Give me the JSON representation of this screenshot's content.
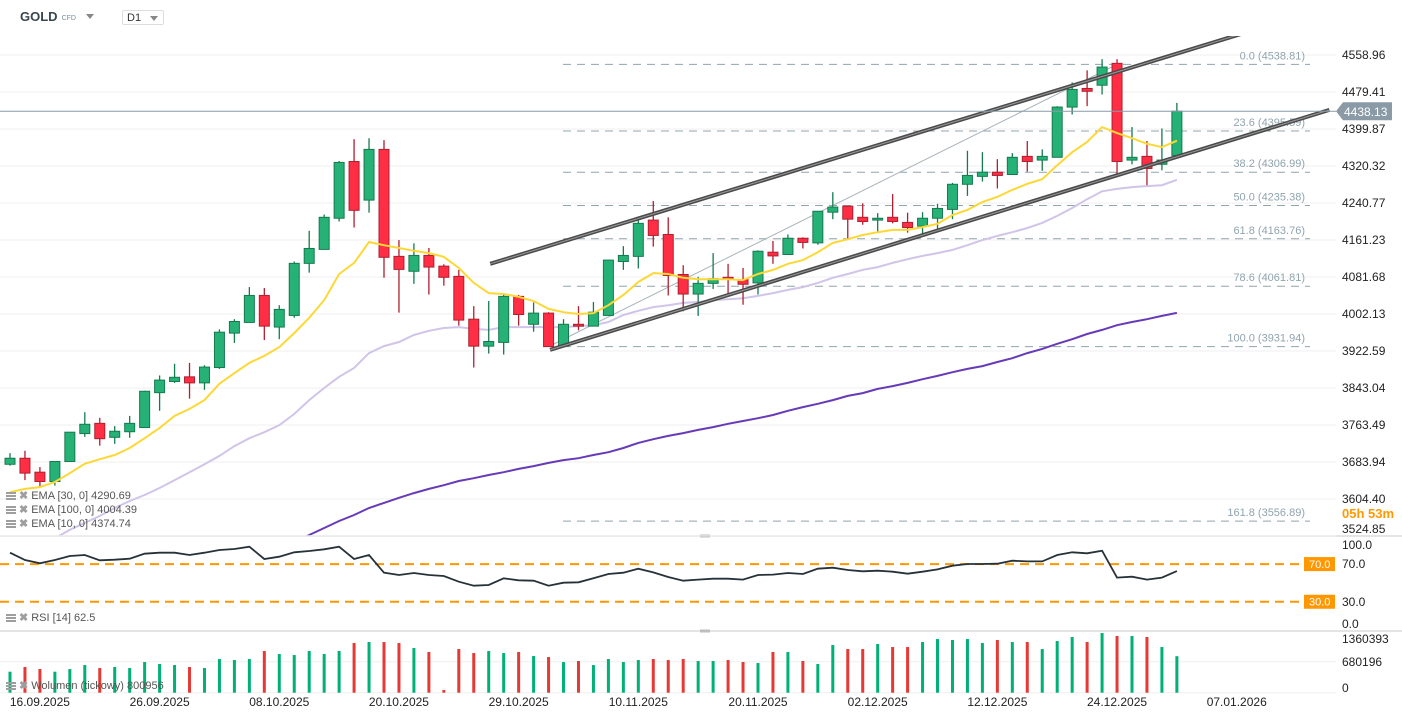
{
  "header": {
    "symbol": "GOLD",
    "instrument_type": "CFD",
    "timeframe": "D1"
  },
  "colors": {
    "up": "#26b276",
    "up_border": "#157a4e",
    "down": "#ff2e44",
    "down_border": "#b01f2f",
    "vol_up": "#00b074",
    "vol_down": "#e53935",
    "ema10": "#fdd835",
    "ema30": "#d1c4e9",
    "ema100": "#673ab7",
    "rsi": "#263238",
    "rsi_levels": "#ff9800",
    "fib": "#90a4ae",
    "channel": "#4a4a4a",
    "last_price": "#8a9aa6"
  },
  "legends": {
    "ema30": "EMA [30, 0] 4290.69",
    "ema100": "EMA [100, 0] 4004.39",
    "ema10": "EMA [10, 0] 4374.74",
    "rsi": "RSI [14] 62.5",
    "volume": "Wolumen (tickowy) 800956"
  },
  "countdown": "05h 53m",
  "last_price": {
    "value": 4438.13,
    "label": "4438.13"
  },
  "chart_data": [
    {
      "type": "candlestick",
      "price_axis": {
        "ticks": [
          "4558.96",
          "4479.41",
          "4399.87",
          "4320.32",
          "4240.77",
          "4161.23",
          "4081.68",
          "4002.13",
          "3922.59",
          "3843.04",
          "3763.49",
          "3683.94",
          "3604.40",
          "3524.85"
        ],
        "range": [
          3524.85,
          4580
        ]
      },
      "x_axis": {
        "ticks": [
          {
            "label": "16.09.2025",
            "index": 2
          },
          {
            "label": "26.09.2025",
            "index": 10
          },
          {
            "label": "08.10.2025",
            "index": 18
          },
          {
            "label": "20.10.2025",
            "index": 26
          },
          {
            "label": "29.10.2025",
            "index": 34
          },
          {
            "label": "10.11.2025",
            "index": 42
          },
          {
            "label": "20.11.2025",
            "index": 50
          },
          {
            "label": "02.12.2025",
            "index": 58
          },
          {
            "label": "12.12.2025",
            "index": 66
          },
          {
            "label": "24.12.2025",
            "index": 74
          },
          {
            "label": "07.01.2026",
            "index": 82
          }
        ]
      },
      "ohlc": [
        [
          3679,
          3703,
          3676,
          3692
        ],
        [
          3692,
          3708,
          3645,
          3660
        ],
        [
          3662,
          3673,
          3630,
          3642
        ],
        [
          3642,
          3686,
          3633,
          3685
        ],
        [
          3685,
          3748,
          3685,
          3748
        ],
        [
          3745,
          3791,
          3738,
          3765
        ],
        [
          3767,
          3779,
          3719,
          3734
        ],
        [
          3737,
          3761,
          3723,
          3750
        ],
        [
          3749,
          3783,
          3736,
          3767
        ],
        [
          3758,
          3837,
          3757,
          3836
        ],
        [
          3833,
          3870,
          3794,
          3860
        ],
        [
          3857,
          3895,
          3854,
          3866
        ],
        [
          3867,
          3897,
          3820,
          3854
        ],
        [
          3854,
          3892,
          3839,
          3888
        ],
        [
          3887,
          3969,
          3884,
          3963
        ],
        [
          3961,
          3991,
          3940,
          3986
        ],
        [
          3984,
          4060,
          3984,
          4042
        ],
        [
          4042,
          4058,
          3946,
          3976
        ],
        [
          3974,
          4021,
          3948,
          4012
        ],
        [
          3999,
          4115,
          3994,
          4111
        ],
        [
          4111,
          4181,
          4091,
          4143
        ],
        [
          4141,
          4216,
          4141,
          4210
        ],
        [
          4208,
          4331,
          4201,
          4328
        ],
        [
          4330,
          4378,
          4188,
          4225
        ],
        [
          4247,
          4380,
          4220,
          4356
        ],
        [
          4356,
          4376,
          4080,
          4124
        ],
        [
          4126,
          4161,
          4005,
          4098
        ],
        [
          4094,
          4154,
          4067,
          4128
        ],
        [
          4128,
          4144,
          4044,
          4103
        ],
        [
          4105,
          4109,
          4063,
          4081
        ],
        [
          4083,
          4097,
          3977,
          3989
        ],
        [
          3991,
          4019,
          3887,
          3933
        ],
        [
          3933,
          4030,
          3917,
          3943
        ],
        [
          3941,
          4044,
          3915,
          4040
        ],
        [
          4040,
          4043,
          3977,
          4001
        ],
        [
          3980,
          4027,
          3964,
          4004
        ],
        [
          4004,
          4006,
          3931.94,
          3932
        ],
        [
          3933,
          3991,
          3930,
          3980
        ],
        [
          3980,
          4019,
          3967,
          3976
        ],
        [
          3976,
          4028,
          3976,
          4006
        ],
        [
          3999,
          4118,
          3999,
          4118
        ],
        [
          4115,
          4148,
          4097,
          4128
        ],
        [
          4126,
          4210,
          4100,
          4197
        ],
        [
          4204,
          4245,
          4147,
          4171
        ],
        [
          4173,
          4210,
          4042,
          4085
        ],
        [
          4087,
          4107,
          4008,
          4045
        ],
        [
          4045,
          4082,
          3998,
          4068
        ],
        [
          4068,
          4133,
          4056,
          4078
        ],
        [
          4081,
          4110,
          4044,
          4078
        ],
        [
          4076,
          4101,
          4022,
          4066
        ],
        [
          4069,
          4139,
          4044,
          4137
        ],
        [
          4135,
          4159,
          4110,
          4127
        ],
        [
          4130,
          4173,
          4130,
          4165
        ],
        [
          4165,
          4167,
          4143,
          4156
        ],
        [
          4155,
          4223,
          4151,
          4223
        ],
        [
          4221,
          4264,
          4206,
          4232
        ],
        [
          4234,
          4234,
          4164,
          4206
        ],
        [
          4210,
          4240,
          4194,
          4201
        ],
        [
          4204,
          4219,
          4179,
          4208
        ],
        [
          4210,
          4260,
          4197,
          4201
        ],
        [
          4199,
          4220,
          4177,
          4188
        ],
        [
          4191,
          4221,
          4172,
          4208
        ],
        [
          4208,
          4239,
          4182,
          4229
        ],
        [
          4227,
          4284,
          4206,
          4281
        ],
        [
          4281,
          4353,
          4256,
          4300
        ],
        [
          4298,
          4350,
          4287,
          4307
        ],
        [
          4307,
          4335,
          4272,
          4300
        ],
        [
          4302,
          4348,
          4302,
          4339
        ],
        [
          4341,
          4374,
          4308,
          4330
        ],
        [
          4333,
          4356,
          4310,
          4341
        ],
        [
          4339,
          4449,
          4339,
          4447
        ],
        [
          4447,
          4500,
          4431,
          4485
        ],
        [
          4487,
          4526,
          4449,
          4481
        ],
        [
          4494,
          4550,
          4474,
          4533
        ],
        [
          4541,
          4550,
          4302,
          4330
        ],
        [
          4333,
          4404,
          4324,
          4339
        ],
        [
          4341,
          4374,
          4279,
          4315
        ],
        [
          4324,
          4401,
          4311,
          4333
        ],
        [
          4343,
          4456,
          4339,
          4438.13
        ]
      ],
      "ema10": [
        3619,
        3626,
        3630,
        3641,
        3660,
        3680,
        3690,
        3699,
        3714,
        3735,
        3757,
        3783,
        3798,
        3817,
        3852,
        3875,
        3897,
        3912,
        3931,
        3961,
        3994,
        4032,
        4088,
        4112,
        4157,
        4150,
        4144,
        4138,
        4133,
        4125,
        4101,
        4069,
        4047,
        4045,
        4039,
        4030,
        4013,
        4006,
        4002,
        4004,
        4021,
        4043,
        4071,
        4090,
        4088,
        4080,
        4077,
        4077,
        4077,
        4075,
        4088,
        4097,
        4110,
        4118,
        4135,
        4155,
        4163,
        4172,
        4178,
        4183,
        4183,
        4189,
        4196,
        4215,
        4226,
        4243,
        4254,
        4269,
        4282,
        4292,
        4322,
        4350,
        4372,
        4404,
        4391,
        4380,
        4368,
        4361,
        4374.74
      ],
      "ema30": [
        3473,
        3488,
        3505,
        3520,
        3538,
        3553,
        3568,
        3585,
        3600,
        3613,
        3628,
        3645,
        3662,
        3679,
        3697,
        3718,
        3735,
        3748,
        3763,
        3787,
        3817,
        3843,
        3867,
        3886,
        3918,
        3933,
        3942,
        3957,
        3966,
        3972,
        3974,
        3970,
        3968,
        3974,
        3974,
        3974,
        3974,
        3974,
        3976,
        3978,
        3985,
        4000,
        4009,
        4017,
        4021,
        4026,
        4028,
        4032,
        4034,
        4036,
        4041,
        4047,
        4054,
        4060,
        4069,
        4080,
        4088,
        4097,
        4103,
        4112,
        4120,
        4127,
        4133,
        4140,
        4150,
        4161,
        4170,
        4178,
        4187,
        4198,
        4213,
        4230,
        4249,
        4266,
        4271,
        4275,
        4277,
        4279,
        4290.69
      ],
      "ema100": [
        3239,
        3252,
        3267,
        3282,
        3297,
        3310,
        3325,
        3340,
        3355,
        3368,
        3383,
        3398,
        3413,
        3426,
        3441,
        3454,
        3469,
        3484,
        3499,
        3512,
        3527,
        3542,
        3557,
        3570,
        3585,
        3596,
        3607,
        3617,
        3626,
        3634,
        3643,
        3649,
        3656,
        3662,
        3669,
        3675,
        3682,
        3688,
        3692,
        3699,
        3705,
        3714,
        3725,
        3733,
        3740,
        3746,
        3753,
        3759,
        3766,
        3772,
        3778,
        3785,
        3794,
        3802,
        3809,
        3817,
        3826,
        3832,
        3841,
        3847,
        3854,
        3862,
        3869,
        3877,
        3884,
        3890,
        3899,
        3907,
        3918,
        3927,
        3938,
        3948,
        3959,
        3968,
        3978,
        3985,
        3991,
        3998,
        4004.39
      ],
      "fibonacci": [
        {
          "label": "0.0 (4538.81)",
          "price": 4538.81
        },
        {
          "label": "23.6 (4395.59)",
          "price": 4395.59
        },
        {
          "label": "38.2 (4306.99)",
          "price": 4306.99
        },
        {
          "label": "50.0 (4235.38)",
          "price": 4235.38
        },
        {
          "label": "61.8 (4163.76)",
          "price": 4163.76
        },
        {
          "label": "78.6 (4061.81)",
          "price": 4061.81
        },
        {
          "label": "100.0 (3931.94)",
          "price": 3931.94
        },
        {
          "label": "161.8 (3556.89)",
          "price": 3556.89
        }
      ],
      "fib_anchor": {
        "from": {
          "index": 36,
          "price": 3931.94
        },
        "to": {
          "index": 74,
          "price": 4538.81
        }
      },
      "channel": [
        {
          "from": {
            "index": 32.1,
            "price": 4110
          },
          "to": {
            "index": 84.2,
            "price": 4623
          }
        },
        {
          "from": {
            "index": 36.1,
            "price": 3925
          },
          "to": {
            "index": 88.2,
            "price": 4441
          }
        }
      ]
    },
    {
      "type": "line",
      "name": "RSI [14]",
      "y_axis": {
        "ticks": [
          "100.0",
          "70.0",
          "30.0",
          "0.0"
        ]
      },
      "levels": [
        {
          "value": 70,
          "label": "70.0"
        },
        {
          "value": 30,
          "label": "30.0"
        }
      ],
      "values": [
        82.1,
        74.3,
        70.8,
        74.3,
        78.6,
        79.6,
        74.0,
        74.7,
        75.7,
        81.0,
        82.1,
        82.1,
        79.6,
        82.1,
        84.9,
        86.0,
        88.5,
        75.4,
        77.8,
        82.5,
        83.9,
        85.7,
        88.5,
        75.4,
        79.6,
        60.9,
        58.4,
        60.5,
        58.4,
        57.3,
        51.3,
        47.0,
        47.8,
        54.9,
        52.8,
        52.4,
        47.0,
        50.2,
        50.6,
        54.9,
        59.5,
        60.9,
        65.1,
        61.2,
        56.3,
        52.4,
        53.5,
        54.5,
        54.5,
        53.5,
        58.4,
        58.8,
        60.5,
        59.5,
        65.1,
        66.2,
        63.7,
        62.3,
        63.0,
        61.9,
        59.8,
        61.9,
        64.4,
        68.3,
        70.1,
        70.1,
        70.4,
        73.6,
        72.9,
        72.9,
        79.6,
        82.5,
        81.4,
        84.2,
        55.6,
        56.6,
        53.5,
        55.6,
        62.5
      ]
    },
    {
      "type": "bar",
      "name": "Wolumen (tickowy)",
      "y_axis": {
        "ticks": [
          "1360393",
          "680196",
          "0"
        ],
        "range": [
          0,
          1360393
        ]
      },
      "values": [
        460782,
        563178,
        519294,
        460782,
        519294,
        607062,
        541236,
        563178,
        541236,
        672888,
        629004,
        607062,
        563178,
        541236,
        738714,
        716772,
        738714,
        914250,
        848424,
        826482,
        914250,
        848424,
        914250,
        1089786,
        1111728,
        1111728,
        1089786,
        980076,
        892308,
        58512,
        958134,
        870366,
        914250,
        870366,
        892308,
        804540,
        782598,
        672888,
        694830,
        607062,
        738714,
        672888,
        716772,
        738714,
        716772,
        738714,
        694830,
        694830,
        716772,
        672888,
        650946,
        892308,
        892308,
        694830,
        629004,
        1045902,
        958134,
        958134,
        1067844,
        1002018,
        1002018,
        1111728,
        1177554,
        1155612,
        1177554,
        1089786,
        1155612,
        1111728,
        1111728,
        958134,
        1133670,
        1221438,
        1111728,
        1309206,
        1243380,
        1243380,
        1221438,
        1002018,
        800956
      ]
    }
  ]
}
